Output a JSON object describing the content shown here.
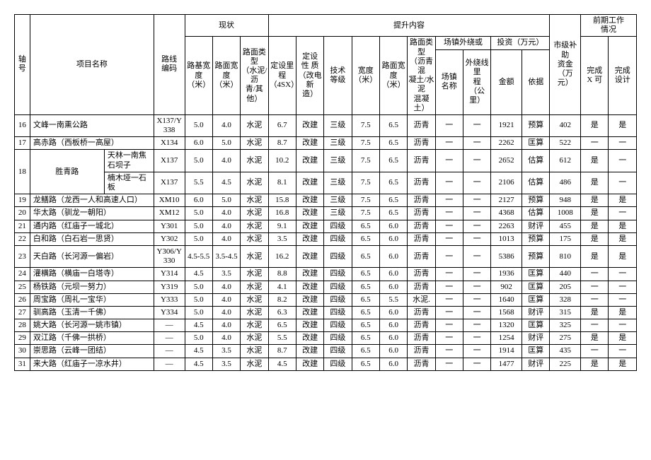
{
  "headerGroups": {
    "xianzhuang": "现状",
    "tisheng": "提升内容",
    "qianqi": "前期工作\n情况"
  },
  "headers": {
    "xuhao": "轴号",
    "xiangmu": "项目名称",
    "luxian": "路线\n编码",
    "lujikuan": "路基宽\n度\n（米）",
    "lumiankuan": "路面宽\n度\n（米）",
    "lumianleixing": "路面类型\n（水泥/沥\n青/其他）",
    "dingshe": "定设里程\n（4SX）",
    "dingshexing": "定设\n性 质\n（改电新\n造）",
    "jishudengji": "技术\n等级",
    "kuandu": "宽度\n（米）",
    "lumiankuandu2": "路面宽度\n（米）",
    "lumianleixing2": "路面类型\n（沥青混\n凝土/水泥\n混凝\n土）",
    "changzhen": "场镇外绕或",
    "changzhenming": "场镇\n名称",
    "waishao": "外绕线里\n程\n（公里）",
    "touzi": "投资（万元）",
    "jine": "金额",
    "yiju": "依据",
    "shiji": "市级补助\n资金（万\n元）",
    "wanchengx": "完成\nX 可",
    "wanchengshe": "完成\n设计"
  },
  "rows": [
    {
      "xh": "16",
      "name": "文峰一南熏公路",
      "sub": "",
      "code": "X137/Y338",
      "ljk": "5.0",
      "lmk": "4.0",
      "lmlx": "水泥",
      "ds": "6.7",
      "dsx": "改建",
      "jsdj": "三级",
      "kd": "7.5",
      "lmk2": "6.5",
      "lmlx2": "沥青",
      "cz": "一",
      "ws": "一",
      "je": "1921",
      "yj": "预算",
      "sj": "402",
      "wx": "是",
      "ws2": "是"
    },
    {
      "xh": "17",
      "name": "高赤路（西板桥一高屋）",
      "sub": "",
      "code": "X134",
      "ljk": "6.0",
      "lmk": "5.0",
      "lmlx": "水泥",
      "ds": "8.7",
      "dsx": "改建",
      "jsdj": "三级",
      "kd": "7.5",
      "lmk2": "6.5",
      "lmlx2": "沥青",
      "cz": "一",
      "ws": "一",
      "je": "2262",
      "yj": "匡算",
      "sj": "522",
      "wx": "一",
      "ws2": "一"
    },
    {
      "xh": "18",
      "name": "胜青路",
      "sub": "天林一南焦石坝子",
      "code": "X137",
      "ljk": "5.0",
      "lmk": "4.0",
      "lmlx": "水泥",
      "ds": "10.2",
      "dsx": "改建",
      "jsdj": "三级",
      "kd": "7.5",
      "lmk2": "6.5",
      "lmlx2": "沥青",
      "cz": "一",
      "ws": "一",
      "je": "2652",
      "yj": "估算",
      "sj": "612",
      "wx": "是",
      "ws2": "一",
      "rowspan": 2
    },
    {
      "xh": "",
      "name": "",
      "sub": "楠木垭一石板",
      "code": "X137",
      "ljk": "5.5",
      "lmk": "4.5",
      "lmlx": "水泥",
      "ds": "8.1",
      "dsx": "改建",
      "jsdj": "三级",
      "kd": "7.5",
      "lmk2": "6.5",
      "lmlx2": "沥青",
      "cz": "一",
      "ws": "一",
      "je": "2106",
      "yj": "估算",
      "sj": "486",
      "wx": "是",
      "ws2": "一"
    },
    {
      "xh": "19",
      "name": "龙鳝路（龙西一人和高速人口）",
      "sub": "",
      "code": "XM10",
      "ljk": "6.0",
      "lmk": "5.0",
      "lmlx": "水泥",
      "ds": "15.8",
      "dsx": "改建",
      "jsdj": "三级",
      "kd": "7.5",
      "lmk2": "6.5",
      "lmlx2": "沥青",
      "cz": "一",
      "ws": "一",
      "je": "2127",
      "yj": "预算",
      "sj": "948",
      "wx": "是",
      "ws2": "是"
    },
    {
      "xh": "20",
      "name": "华太路（驯龙一朝阳）",
      "sub": "",
      "code": "XM12",
      "ljk": "5.0",
      "lmk": "4.0",
      "lmlx": "水泥",
      "ds": "16.8",
      "dsx": "改建",
      "jsdj": "三级",
      "kd": "7.5",
      "lmk2": "6.5",
      "lmlx2": "沥青",
      "cz": "一",
      "ws": "一",
      "je": "4368",
      "yj": "估算",
      "sj": "1008",
      "wx": "是",
      "ws2": "一"
    },
    {
      "xh": "21",
      "name": "通内路（红庙子一城北）",
      "sub": "",
      "code": "Y301",
      "ljk": "5.0",
      "lmk": "4.0",
      "lmlx": "水泥",
      "ds": "9.1",
      "dsx": "改建",
      "jsdj": "四级",
      "kd": "6.5",
      "lmk2": "6.0",
      "lmlx2": "沥青",
      "cz": "一",
      "ws": "一",
      "je": "2263",
      "yj": "财评",
      "sj": "455",
      "wx": "是",
      "ws2": "是"
    },
    {
      "xh": "22",
      "name": "白和路（白石岩一思贤）",
      "sub": "",
      "code": "Y302",
      "ljk": "5.0",
      "lmk": "4.0",
      "lmlx": "水泥",
      "ds": "3.5",
      "dsx": "改建",
      "jsdj": "四级",
      "kd": "6.5",
      "lmk2": "6.0",
      "lmlx2": "沥青",
      "cz": "一",
      "ws": "一",
      "je": "1013",
      "yj": "预算",
      "sj": "175",
      "wx": "是",
      "ws2": "是"
    },
    {
      "xh": "23",
      "name": "天白路（长河源一偏岩）",
      "sub": "",
      "code": "Y306/Y330",
      "ljk": "4.5-5.5",
      "lmk": "3.5-4.5",
      "lmlx": "水泥",
      "ds": "16.2",
      "dsx": "改建",
      "jsdj": "四级",
      "kd": "6.5",
      "lmk2": "6.0",
      "lmlx2": "沥青",
      "cz": "一",
      "ws": "一",
      "je": "5386",
      "yj": "预算",
      "sj": "810",
      "wx": "是",
      "ws2": "是"
    },
    {
      "xh": "24",
      "name": "灌横路（横庙一白塔寺）",
      "sub": "",
      "code": "Y314",
      "ljk": "4.5",
      "lmk": "3.5",
      "lmlx": "水泥",
      "ds": "8.8",
      "dsx": "改建",
      "jsdj": "四级",
      "kd": "6.5",
      "lmk2": "6.0",
      "lmlx2": "沥青",
      "cz": "一",
      "ws": "一",
      "je": "1936",
      "yj": "匡算",
      "sj": "440",
      "wx": "一",
      "ws2": "一"
    },
    {
      "xh": "25",
      "name": "杨铁路（元坝一努力）",
      "sub": "",
      "code": "Y319",
      "ljk": "5.0",
      "lmk": "4.0",
      "lmlx": "水泥",
      "ds": "4.1",
      "dsx": "改建",
      "jsdj": "四级",
      "kd": "6.5",
      "lmk2": "6.0",
      "lmlx2": "沥青",
      "cz": "一",
      "ws": "一",
      "je": "902",
      "yj": "匡算",
      "sj": "205",
      "wx": "一",
      "ws2": "一"
    },
    {
      "xh": "26",
      "name": "周宝路（周礼一宝华）",
      "sub": "",
      "code": "Y333",
      "ljk": "5.0",
      "lmk": "4.0",
      "lmlx": "水泥",
      "ds": "8.2",
      "dsx": "改建",
      "jsdj": "四级",
      "kd": "6.5",
      "lmk2": "5.5",
      "lmlx2": "水泥.",
      "cz": "一",
      "ws": "一",
      "je": "1640",
      "yj": "匡算",
      "sj": "328",
      "wx": "一",
      "ws2": "一"
    },
    {
      "xh": "27",
      "name": "驯高路（玉清一千佛）",
      "sub": "",
      "code": "Y334",
      "ljk": "5.0",
      "lmk": "4.0",
      "lmlx": "水泥",
      "ds": "6.3",
      "dsx": "改建",
      "jsdj": "四级",
      "kd": "6.5",
      "lmk2": "6.0",
      "lmlx2": "沥青",
      "cz": "一",
      "ws": "一",
      "je": "1568",
      "yj": "财评",
      "sj": "315",
      "wx": "是",
      "ws2": "是"
    },
    {
      "xh": "28",
      "name": "姚大路（长河源一姚市镇）",
      "sub": "",
      "code": "—",
      "ljk": "4.5",
      "lmk": "4.0",
      "lmlx": "水泥",
      "ds": "6.5",
      "dsx": "改建",
      "jsdj": "四级",
      "kd": "6.5",
      "lmk2": "6.0",
      "lmlx2": "沥青",
      "cz": "一",
      "ws": "一",
      "je": "1320",
      "yj": "匡算",
      "sj": "325",
      "wx": "一",
      "ws2": "一"
    },
    {
      "xh": "29",
      "name": "双江路（千佛一拱桥）",
      "sub": "",
      "code": "—",
      "ljk": "5.0",
      "lmk": "4.0",
      "lmlx": "水泥",
      "ds": "5.5",
      "dsx": "改建",
      "jsdj": "四级",
      "kd": "6.5",
      "lmk2": "6.0",
      "lmlx2": "沥青",
      "cz": "一",
      "ws": "一",
      "je": "1254",
      "yj": "财评",
      "sj": "275",
      "wx": "是",
      "ws2": "是"
    },
    {
      "xh": "30",
      "name": "崇思路（云峰一团结）",
      "sub": "",
      "code": "—",
      "ljk": "4.5",
      "lmk": "3.5",
      "lmlx": "水泥",
      "ds": "8.7",
      "dsx": "改建",
      "jsdj": "四级",
      "kd": "6.5",
      "lmk2": "6.0",
      "lmlx2": "沥青",
      "cz": "一",
      "ws": "一",
      "je": "1914",
      "yj": "匡算",
      "sj": "435",
      "wx": "一",
      "ws2": "一"
    },
    {
      "xh": "31",
      "name": "来大路（红庙子一凉水井）",
      "sub": "",
      "code": "—",
      "ljk": "4.5",
      "lmk": "3.5",
      "lmlx": "水泥",
      "ds": "4.5",
      "dsx": "改建",
      "jsdj": "四级",
      "kd": "6.5",
      "lmk2": "6.0",
      "lmlx2": "沥青",
      "cz": "一",
      "ws": "一",
      "je": "1477",
      "yj": "财评",
      "sj": "225",
      "wx": "是",
      "ws2": "是"
    }
  ]
}
